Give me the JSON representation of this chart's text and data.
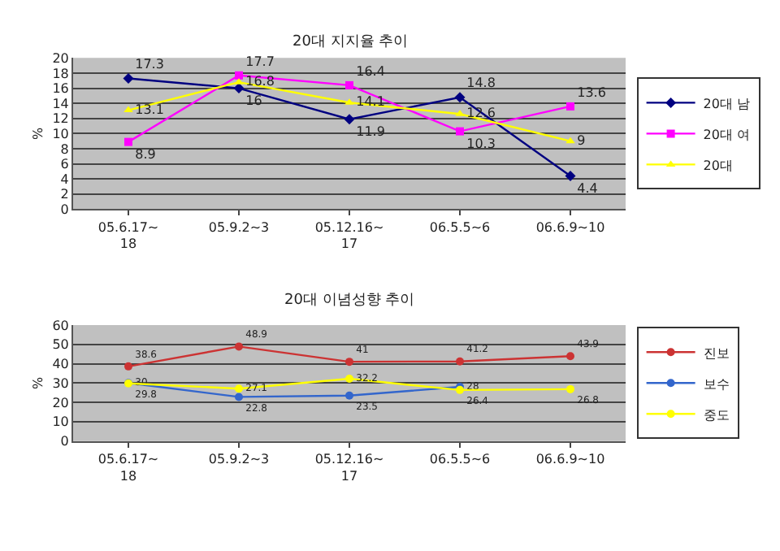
{
  "chart_data": [
    {
      "type": "line",
      "title": "20대 지지율 추이",
      "ylabel": "%",
      "categories": [
        "05.6.17~18",
        "05.9.2~3",
        "05.12.16~17",
        "06.5.5~6",
        "06.6.9~10"
      ],
      "ylim": [
        0,
        20
      ],
      "yticks": [
        0,
        2,
        4,
        6,
        8,
        10,
        12,
        14,
        16,
        18,
        20
      ],
      "grid": "y",
      "legend": "right",
      "data_labels": true,
      "line_style": "solid",
      "series": [
        {
          "name": "20대 남",
          "color": "#000080",
          "marker": "diamond",
          "values": [
            17.3,
            16,
            11.9,
            14.8,
            4.4
          ]
        },
        {
          "name": "20대 여",
          "color": "#ff00ff",
          "marker": "square",
          "values": [
            8.9,
            17.7,
            16.4,
            10.3,
            13.6
          ]
        },
        {
          "name": "20대",
          "color": "#ffff00",
          "marker": "triangle",
          "values": [
            13.1,
            16.8,
            14.1,
            12.6,
            9
          ]
        }
      ]
    },
    {
      "type": "line",
      "title": "20대 이념성향 추이",
      "ylabel": "%",
      "categories": [
        "05.6.17~18",
        "05.9.2~3",
        "05.12.16~17",
        "06.5.5~6",
        "06.6.9~10"
      ],
      "ylim": [
        0,
        60
      ],
      "yticks": [
        0,
        10,
        20,
        30,
        40,
        50,
        60
      ],
      "grid": "y",
      "legend": "right",
      "line_style": "solid",
      "series": [
        {
          "name": "진보",
          "color": "#cc3333",
          "marker": "circle",
          "values": [
            38.6,
            48.9,
            41,
            41.2,
            43.9
          ],
          "value_labels": [
            "38.6",
            "48.9",
            "41",
            "41.2",
            "43.9"
          ]
        },
        {
          "name": "보수",
          "color": "#3366cc",
          "marker": "circle",
          "values": [
            30,
            22.8,
            23.5,
            28,
            null
          ],
          "value_labels": [
            "30",
            "22.8",
            "23.5",
            "28",
            null
          ]
        },
        {
          "name": "중도",
          "color": "#ffff00",
          "marker": "circle",
          "values": [
            29.8,
            27.1,
            32.2,
            26.4,
            26.8
          ],
          "value_labels": [
            "29.8",
            "27.1",
            "32.2",
            "26.4",
            "26.8"
          ]
        }
      ]
    }
  ]
}
